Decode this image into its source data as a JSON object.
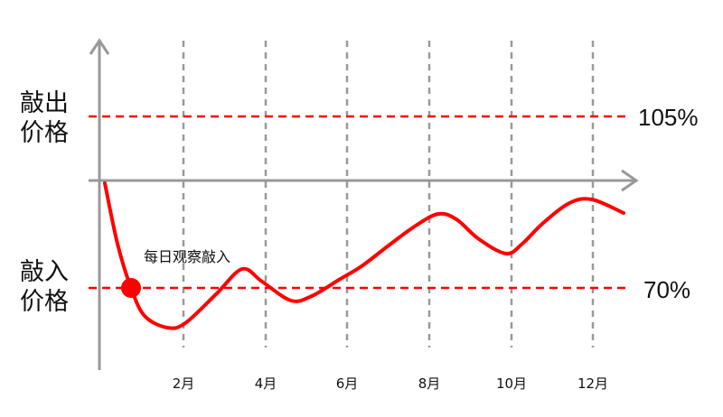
{
  "labels": {
    "sell_price_line1": "敲出",
    "sell_price_line2": "价格",
    "buy_price_line1": "敲入",
    "buy_price_line2": "价格",
    "upper_pct": "105%",
    "lower_pct": "70%",
    "annotation": "每日观察敲入"
  },
  "months": [
    "2月",
    "4月",
    "6月",
    "8月",
    "10月",
    "12月"
  ],
  "colors": {
    "curve": "#ff0000",
    "threshold": "#ff0000",
    "axis": "#999999",
    "grid": "#999999"
  }
}
